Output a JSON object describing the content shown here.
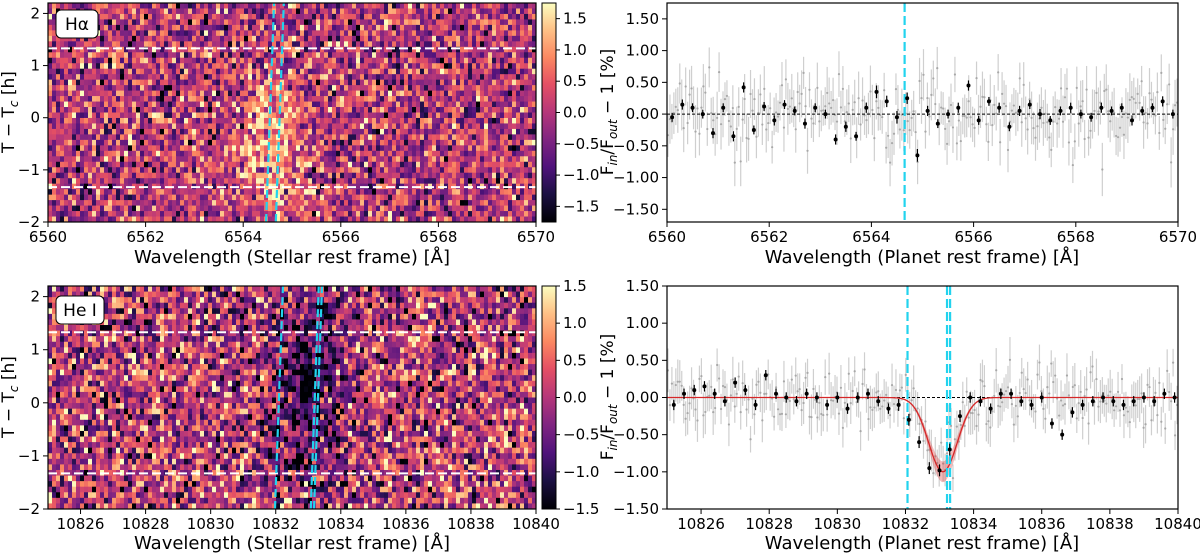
{
  "chart_data": [
    {
      "type": "heatmap",
      "label_box": "Hα",
      "xlabel": "Wavelength (Stellar rest frame) [Å]",
      "ylabel": "T − T_c [h]",
      "xlim": [
        6560,
        6570
      ],
      "ylim": [
        -2,
        2.2
      ],
      "x_ticks": [
        6560,
        6562,
        6564,
        6566,
        6568,
        6570
      ],
      "y_ticks": [
        -2,
        -1,
        0,
        1,
        2
      ],
      "colorbar": {
        "min": -1.75,
        "max": 1.75,
        "ticks": [
          1.5,
          1.0,
          0.5,
          0.0,
          -0.5,
          -1.0,
          -1.5
        ]
      },
      "contact_lines_y": [
        1.33,
        -1.33
      ],
      "track_x": [
        6564.55,
        6564.75
      ],
      "feature": {
        "center_x": 6564.55,
        "center_y": -0.45,
        "amplitude": 1.3,
        "sigma_x": 0.45,
        "sigma_y": 0.9
      }
    },
    {
      "type": "scatter",
      "xlabel": "Wavelength (Planet rest frame) [Å]",
      "ylabel": "F_in/F_out − 1 [%]",
      "xlim": [
        6560,
        6570
      ],
      "ylim": [
        -1.7,
        1.75
      ],
      "x_ticks": [
        6560,
        6562,
        6564,
        6566,
        6568,
        6570
      ],
      "y_ticks": [
        1.5,
        1.0,
        0.5,
        0.0,
        -0.5,
        -1.0,
        -1.5
      ],
      "reference_lines_x": [
        6564.65
      ],
      "binned": {
        "x": [
          6560.1,
          6560.3,
          6560.5,
          6560.7,
          6560.9,
          6561.1,
          6561.3,
          6561.5,
          6561.7,
          6561.9,
          6562.1,
          6562.3,
          6562.5,
          6562.7,
          6562.9,
          6563.1,
          6563.3,
          6563.5,
          6563.7,
          6563.9,
          6564.1,
          6564.3,
          6564.5,
          6564.7,
          6564.9,
          6565.1,
          6565.3,
          6565.5,
          6565.7,
          6565.9,
          6566.1,
          6566.3,
          6566.5,
          6566.7,
          6566.9,
          6567.1,
          6567.3,
          6567.5,
          6567.7,
          6567.9,
          6568.1,
          6568.3,
          6568.5,
          6568.7,
          6568.9,
          6569.1,
          6569.3,
          6569.5,
          6569.7,
          6569.9
        ],
        "y": [
          -0.05,
          0.15,
          0.1,
          0.0,
          -0.3,
          0.1,
          -0.35,
          0.42,
          -0.25,
          0.12,
          -0.1,
          0.15,
          0.05,
          -0.15,
          0.1,
          0.0,
          -0.4,
          -0.2,
          -0.35,
          0.1,
          0.35,
          0.2,
          -0.05,
          0.25,
          -0.65,
          0.05,
          -0.15,
          0.0,
          0.1,
          0.45,
          -0.1,
          0.2,
          0.1,
          -0.2,
          0.05,
          0.15,
          0.0,
          -0.1,
          0.05,
          0.1,
          0.0,
          -0.05,
          0.1,
          0.05,
          0.1,
          -0.1,
          0.05,
          0.1,
          0.2,
          0.0
        ],
        "err": [
          0.07,
          0.08,
          0.07,
          0.07,
          0.08,
          0.07,
          0.08,
          0.08,
          0.07,
          0.07,
          0.08,
          0.07,
          0.07,
          0.08,
          0.07,
          0.07,
          0.08,
          0.08,
          0.07,
          0.08,
          0.1,
          0.09,
          0.1,
          0.09,
          0.1,
          0.08,
          0.07,
          0.07,
          0.08,
          0.08,
          0.07,
          0.07,
          0.08,
          0.07,
          0.08,
          0.07,
          0.08,
          0.07,
          0.07,
          0.08,
          0.07,
          0.07,
          0.08,
          0.07,
          0.07,
          0.08,
          0.07,
          0.07,
          0.08,
          0.07
        ]
      },
      "unbinned_scatter": 0.3
    },
    {
      "type": "heatmap",
      "label_box": "He I",
      "xlabel": "Wavelength (Stellar rest frame) [Å]",
      "ylabel": "T − T_c [h]",
      "xlim": [
        10825,
        10840
      ],
      "ylim": [
        -2,
        2.2
      ],
      "x_ticks": [
        10826,
        10828,
        10830,
        10832,
        10834,
        10836,
        10838,
        10840
      ],
      "y_ticks": [
        -2,
        -1,
        0,
        1,
        2
      ],
      "colorbar": {
        "min": -1.5,
        "max": 1.5,
        "ticks": [
          1.5,
          1.0,
          0.5,
          0.0,
          -0.5,
          -1.0,
          -1.5
        ]
      },
      "contact_lines_y": [
        1.33,
        -1.33
      ],
      "track_x": [
        10832.1,
        10833.2,
        10833.3
      ],
      "feature": {
        "center_x": 10833.0,
        "center_y": 0.2,
        "amplitude": -1.1,
        "sigma_x": 0.7,
        "sigma_y": 1.3
      }
    },
    {
      "type": "scatter",
      "xlabel": "Wavelength (Planet rest frame) [Å]",
      "ylabel": "F_in/F_out − 1 [%]",
      "xlim": [
        10825,
        10840
      ],
      "ylim": [
        -1.5,
        1.5
      ],
      "x_ticks": [
        10826,
        10828,
        10830,
        10832,
        10834,
        10836,
        10838,
        10840
      ],
      "y_ticks": [
        1.5,
        1.0,
        0.5,
        0.0,
        -0.5,
        -1.0,
        -1.5
      ],
      "reference_lines_x": [
        10832.06,
        10833.22,
        10833.31
      ],
      "model": {
        "center": 10833.1,
        "depth": -1.0,
        "sigma": 0.42
      },
      "binned": {
        "x": [
          10825.2,
          10825.5,
          10825.8,
          10826.1,
          10826.4,
          10826.7,
          10827.0,
          10827.3,
          10827.6,
          10827.9,
          10828.2,
          10828.5,
          10828.8,
          10829.1,
          10829.4,
          10829.7,
          10830.0,
          10830.3,
          10830.6,
          10830.9,
          10831.2,
          10831.5,
          10831.8,
          10832.1,
          10832.4,
          10832.7,
          10833.0,
          10833.3,
          10833.6,
          10833.9,
          10834.2,
          10834.5,
          10834.8,
          10835.1,
          10835.4,
          10835.7,
          10836.0,
          10836.3,
          10836.6,
          10836.9,
          10837.2,
          10837.5,
          10837.8,
          10838.1,
          10838.4,
          10838.7,
          10839.0,
          10839.3,
          10839.6,
          10839.9
        ],
        "y": [
          -0.1,
          0.05,
          0.1,
          0.15,
          0.05,
          -0.05,
          0.2,
          0.1,
          -0.1,
          0.3,
          0.05,
          0.0,
          -0.05,
          0.05,
          0.0,
          -0.1,
          0.0,
          -0.15,
          0.0,
          0.05,
          -0.05,
          -0.15,
          -0.1,
          -0.3,
          -0.6,
          -0.95,
          -0.98,
          -0.7,
          -0.25,
          0.0,
          -0.05,
          -0.15,
          0.05,
          0.05,
          -0.05,
          -0.1,
          0.0,
          -0.35,
          -0.5,
          -0.2,
          -0.1,
          -0.05,
          0.0,
          -0.05,
          -0.1,
          -0.05,
          0.0,
          -0.05,
          0.05,
          0.0
        ],
        "err": [
          0.07,
          0.07,
          0.07,
          0.07,
          0.07,
          0.07,
          0.07,
          0.07,
          0.07,
          0.07,
          0.07,
          0.07,
          0.07,
          0.07,
          0.07,
          0.07,
          0.07,
          0.07,
          0.07,
          0.07,
          0.07,
          0.07,
          0.08,
          0.08,
          0.08,
          0.08,
          0.08,
          0.08,
          0.08,
          0.07,
          0.07,
          0.07,
          0.07,
          0.07,
          0.07,
          0.07,
          0.07,
          0.07,
          0.07,
          0.07,
          0.07,
          0.07,
          0.07,
          0.07,
          0.07,
          0.07,
          0.07,
          0.07,
          0.07,
          0.07
        ]
      },
      "unbinned_scatter": 0.22
    }
  ]
}
